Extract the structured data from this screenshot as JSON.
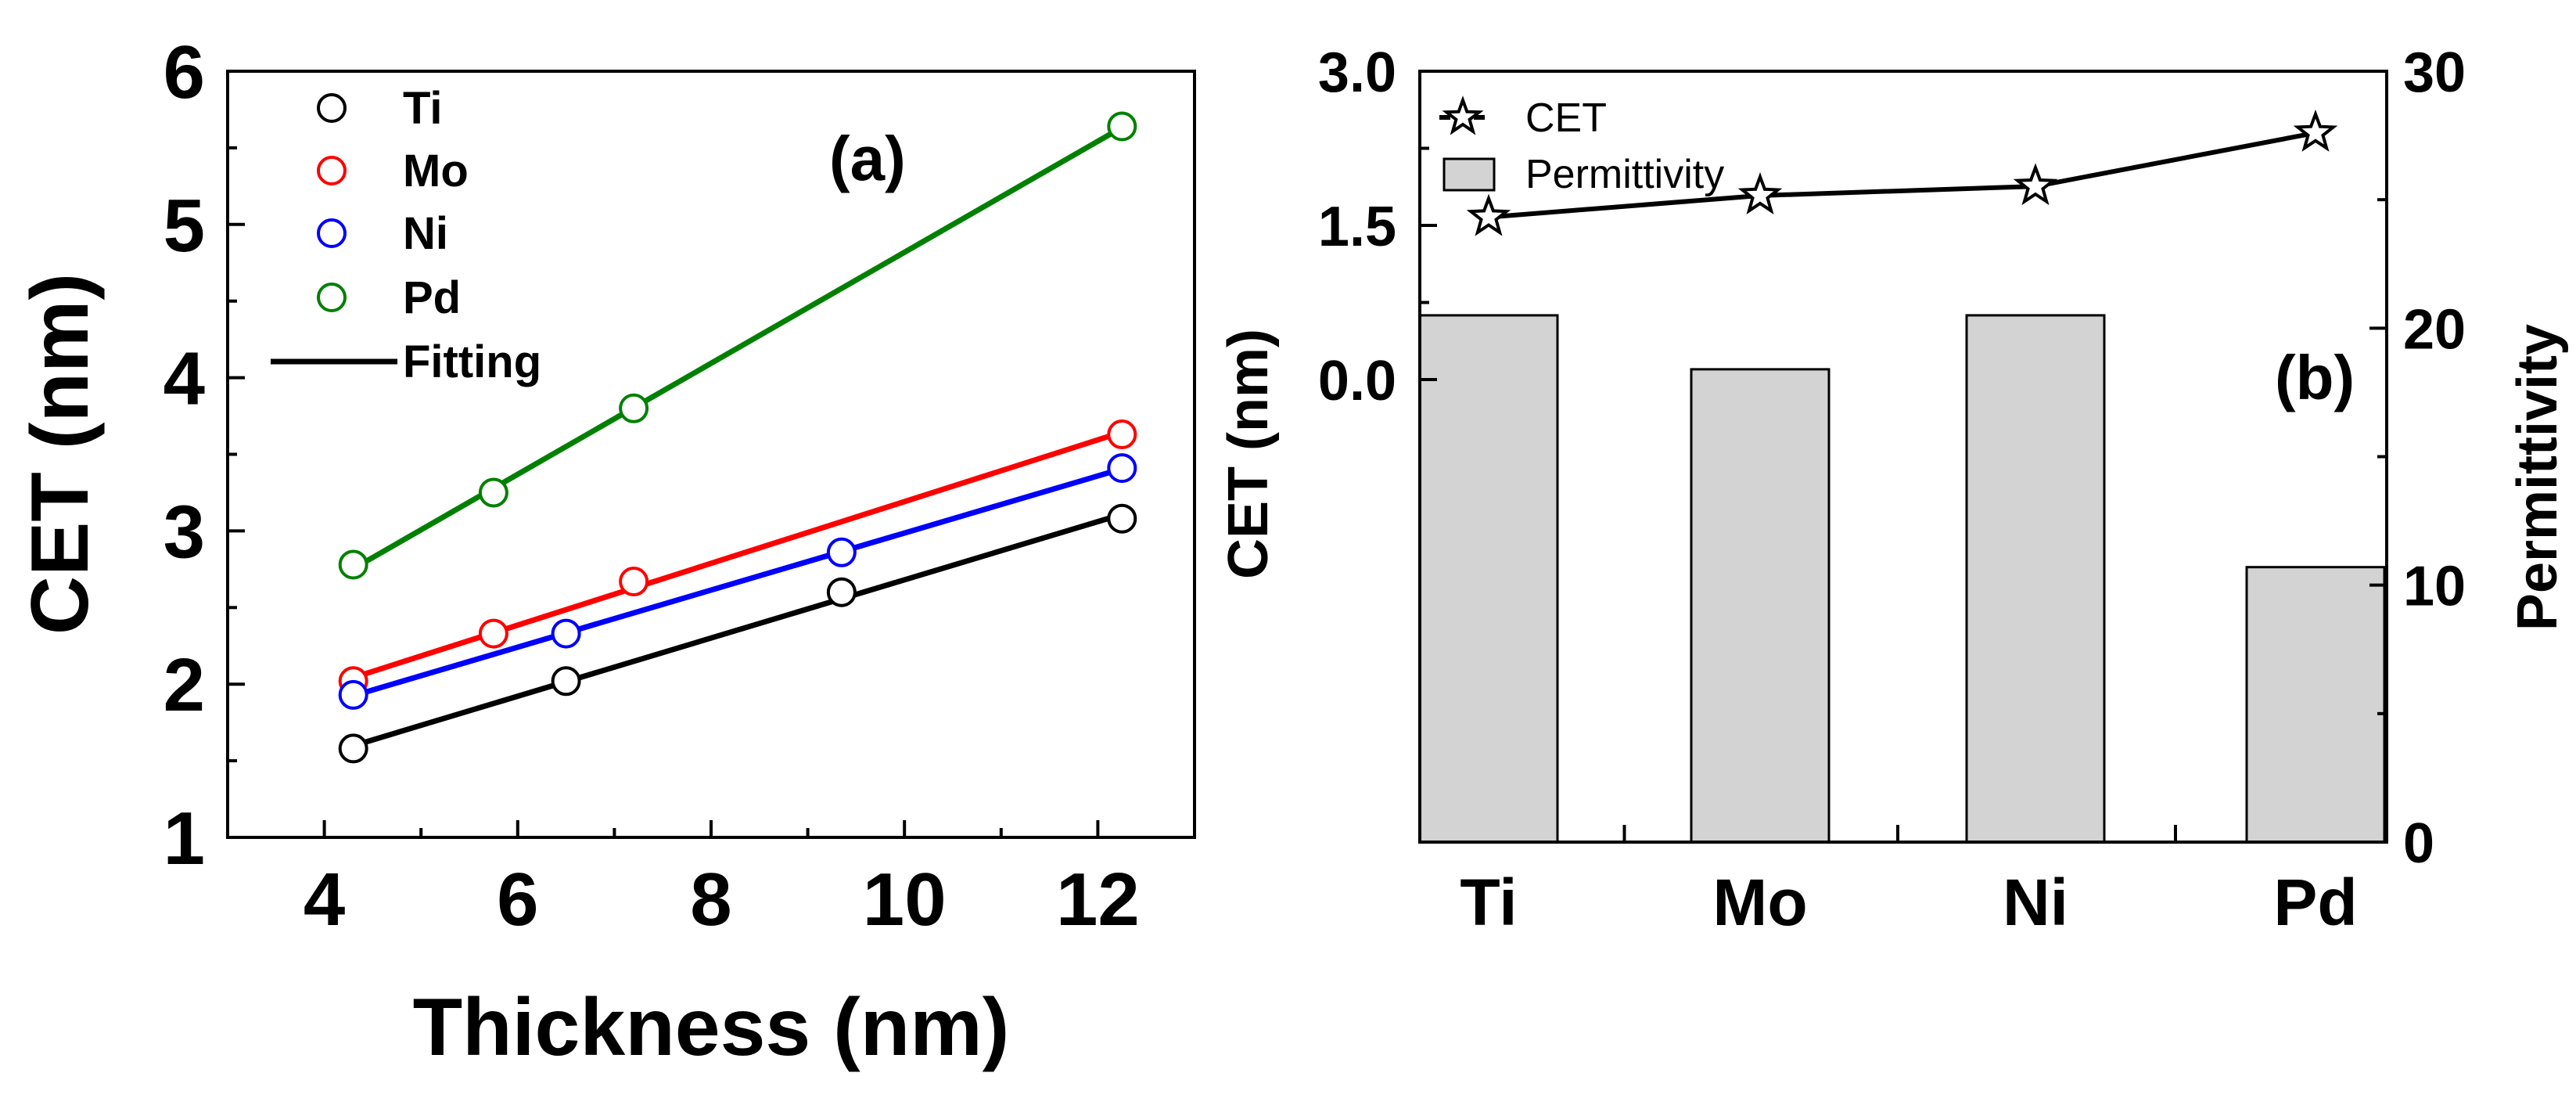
{
  "chart_data": [
    {
      "type": "line",
      "panel_label": "(a)",
      "xlabel": "Thickness (nm)",
      "ylabel": "CET (nm)",
      "xlim": [
        3.0,
        13.0
      ],
      "ylim": [
        1,
        6
      ],
      "xticks": [
        4,
        6,
        8,
        10,
        12
      ],
      "yticks": [
        1,
        2,
        3,
        4,
        5,
        6
      ],
      "legend_position": "top-left",
      "fit_label": "Fitting",
      "series": [
        {
          "name": "Ti",
          "color": "#000000",
          "x": [
            4.3,
            6.5,
            9.35,
            12.25
          ],
          "y": [
            1.58,
            2.02,
            2.6,
            3.08
          ]
        },
        {
          "name": "Mo",
          "color": "#ff0000",
          "x": [
            4.3,
            5.75,
            7.2,
            12.25
          ],
          "y": [
            2.02,
            2.33,
            2.67,
            3.63
          ]
        },
        {
          "name": "Ni",
          "color": "#0000ff",
          "x": [
            4.3,
            6.5,
            9.35,
            12.25
          ],
          "y": [
            1.93,
            2.33,
            2.86,
            3.41
          ]
        },
        {
          "name": "Pd",
          "color": "#008000",
          "x": [
            4.3,
            5.75,
            7.2,
            12.25
          ],
          "y": [
            2.78,
            3.25,
            3.8,
            5.64
          ]
        }
      ]
    },
    {
      "type": "bar",
      "panel_label": "(b)",
      "categories": [
        "Ti",
        "Mo",
        "Ni",
        "Pd"
      ],
      "xlabel": "",
      "ylabel": "CET (nm)",
      "y2label": "Permittivity",
      "ylim": [
        -4.5,
        3.0
      ],
      "y2lim": [
        0,
        30
      ],
      "yticks": [
        0.0,
        1.5,
        3.0
      ],
      "ytick_labels": [
        "0.0",
        "1.5",
        "3.0"
      ],
      "y2ticks": [
        0,
        10,
        20,
        30
      ],
      "legend_position": "top-left",
      "series": [
        {
          "name": "CET",
          "kind": "line",
          "marker": "star",
          "axis": "left",
          "values": [
            1.58,
            1.79,
            1.88,
            2.4
          ]
        },
        {
          "name": "Permittivity",
          "kind": "bar",
          "axis": "right",
          "color": "#d3d3d3",
          "values": [
            20.5,
            18.4,
            20.5,
            10.7
          ]
        }
      ]
    }
  ]
}
